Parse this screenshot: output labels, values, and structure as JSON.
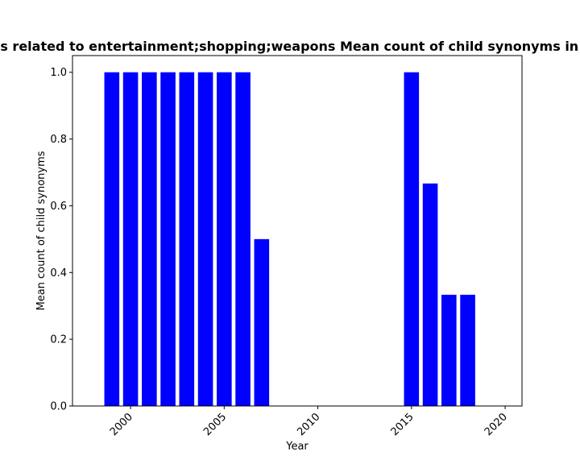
{
  "chart_data": {
    "type": "bar",
    "title": "Terms related to entertainment;shopping;weapons Mean count of child synonyms in period",
    "xlabel": "Year",
    "ylabel": "Mean count of child synonyms",
    "x": [
      1999,
      2000,
      2001,
      2002,
      2003,
      2004,
      2005,
      2006,
      2007,
      2015,
      2016,
      2017,
      2018
    ],
    "values": [
      1.0,
      1.0,
      1.0,
      1.0,
      1.0,
      1.0,
      1.0,
      1.0,
      0.5,
      1.0,
      0.6667,
      0.3333,
      0.3333
    ],
    "xlim": [
      1996.9,
      2020.9
    ],
    "ylim": [
      0,
      1.05
    ],
    "xticks": [
      2000,
      2005,
      2010,
      2015,
      2020
    ],
    "yticks": [
      "0.0",
      "0.2",
      "0.4",
      "0.6",
      "0.8",
      "1.0"
    ],
    "bar_color": "#0000ff",
    "grid": false,
    "legend": "none"
  }
}
